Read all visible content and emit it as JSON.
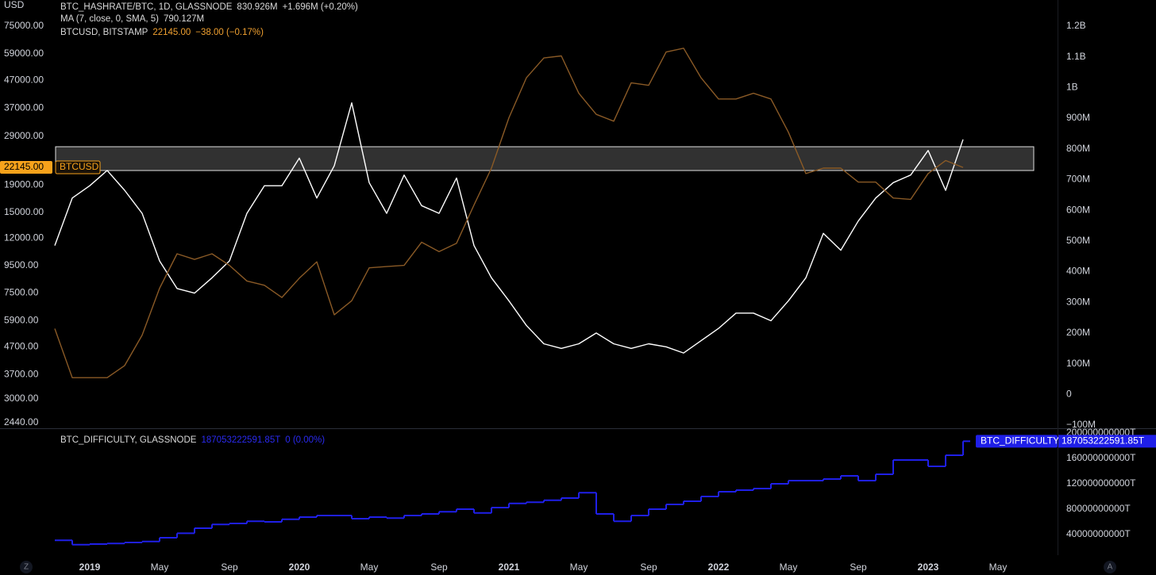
{
  "chart_data": [
    {
      "type": "line",
      "y_axis_label": "USD",
      "log_y": true,
      "ylim": [
        2440,
        75000
      ],
      "yticks": [
        {
          "value": 2440,
          "label": "2440.00"
        },
        {
          "value": 3000,
          "label": "3000.00"
        },
        {
          "value": 3700,
          "label": "3700.00"
        },
        {
          "value": 4700,
          "label": "4700.00"
        },
        {
          "value": 5900,
          "label": "5900.00"
        },
        {
          "value": 7500,
          "label": "7500.00"
        },
        {
          "value": 9500,
          "label": "9500.00"
        },
        {
          "value": 12000,
          "label": "12000.00"
        },
        {
          "value": 15000,
          "label": "15000.00"
        },
        {
          "value": 19000,
          "label": "19000.00"
        },
        {
          "value": 29000,
          "label": "29000.00"
        },
        {
          "value": 37000,
          "label": "37000.00"
        },
        {
          "value": 47000,
          "label": "47000.00"
        },
        {
          "value": 59000,
          "label": "59000.00"
        },
        {
          "value": 75000,
          "label": "75000.00"
        }
      ],
      "y2lim": [
        -100000000,
        1200000000
      ],
      "y2ticks": [
        {
          "value": -100000000,
          "label": "−100M"
        },
        0,
        {
          "value": 100000000,
          "label": "100M"
        },
        {
          "value": 200000000,
          "label": "200M"
        },
        {
          "value": 300000000,
          "label": "300M"
        },
        {
          "value": 400000000,
          "label": "400M"
        },
        {
          "value": 500000000,
          "label": "500M"
        },
        {
          "value": 600000000,
          "label": "600M"
        },
        {
          "value": 700000000,
          "label": "700M"
        },
        {
          "value": 800000000,
          "label": "800M"
        },
        {
          "value": 900000000,
          "label": "900M"
        },
        {
          "value": 1000000000,
          "label": "1B"
        },
        {
          "value": 1100000000,
          "label": "1.1B"
        },
        {
          "value": 1200000000,
          "label": "1.2B"
        }
      ],
      "price_tag": {
        "value": 22145,
        "label": "22145.00",
        "name": "BTCUSD"
      },
      "indicator": {
        "name": "MA (7, close, 0, SMA, 5)",
        "value_label": "790.127M"
      },
      "series": [
        {
          "name": "BTC_HASHRATE/BTC, 1D, GLASSNODE",
          "axis": "y2",
          "color": "#ffffff",
          "text_color": "#d9d9d9",
          "legend_values": [
            "830.926M",
            "+1.696M (+0.20%)"
          ],
          "values": [
            485000000,
            640000000,
            680000000,
            730000000,
            665000000,
            590000000,
            435000000,
            345000000,
            330000000,
            380000000,
            435000000,
            590000000,
            680000000,
            680000000,
            770000000,
            640000000,
            745000000,
            950000000,
            690000000,
            590000000,
            715000000,
            615000000,
            590000000,
            705000000,
            485000000,
            380000000,
            305000000,
            225000000,
            165000000,
            150000000,
            165000000,
            200000000,
            165000000,
            150000000,
            165000000,
            155000000,
            135000000,
            175000000,
            215000000,
            265000000,
            265000000,
            240000000,
            305000000,
            380000000,
            525000000,
            470000000,
            565000000,
            640000000,
            690000000,
            715000000,
            795000000,
            665000000,
            830926000,
            null,
            null
          ]
        },
        {
          "name": "BTCUSD, BITSTAMP",
          "axis": "y",
          "color": "#8a5a26",
          "text_color": "#f0a030",
          "legend_values": [
            "22145.00",
            "−38.00 (−0.17%)"
          ],
          "values": [
            5500,
            3600,
            3600,
            3600,
            4000,
            5200,
            7800,
            10500,
            10000,
            10500,
            9500,
            8300,
            8000,
            7200,
            8500,
            9800,
            6200,
            7000,
            9300,
            9400,
            9500,
            11600,
            10700,
            11500,
            16000,
            22000,
            34000,
            48000,
            57000,
            58000,
            42000,
            35000,
            33000,
            46000,
            45000,
            60000,
            62000,
            48000,
            40000,
            40000,
            42000,
            40000,
            30000,
            21000,
            22000,
            22000,
            19500,
            19500,
            17000,
            16800,
            21000,
            23500,
            22145,
            null,
            null
          ]
        }
      ]
    },
    {
      "type": "step",
      "categories": [
        null,
        null,
        "2019",
        null,
        null,
        null,
        "May",
        null,
        null,
        null,
        "Sep",
        null,
        null,
        null,
        "2020",
        null,
        null,
        null,
        "May",
        null,
        null,
        null,
        "Sep",
        null,
        null,
        null,
        "2021",
        null,
        null,
        null,
        "May",
        null,
        null,
        null,
        "Sep",
        null,
        null,
        null,
        "2022",
        null,
        null,
        null,
        "May",
        null,
        null,
        null,
        "Sep",
        null,
        null,
        null,
        "2023",
        null,
        null,
        null,
        "May"
      ],
      "ylim": [
        0,
        200000000000
      ],
      "yticks": [
        {
          "value": 40000000000,
          "label": "40000000000T"
        },
        {
          "value": 80000000000,
          "label": "80000000000T"
        },
        {
          "value": 120000000000,
          "label": "120000000000T"
        },
        {
          "value": 160000000000,
          "label": "160000000000T"
        },
        {
          "value": 200000000000,
          "label": "200000000000T"
        }
      ],
      "price_tag": {
        "value": 187053222591.85,
        "label": "187053222591.85T",
        "name": "BTC_DIFFICULTY"
      },
      "series": [
        {
          "name": "BTC_DIFFICULTY, GLASSNODE",
          "color": "#1f1fe8",
          "text_color": "#2a2af0",
          "legend_values": [
            "187053222591.85T",
            "0 (0.00%)"
          ],
          "values": [
            31000000000,
            24000000000,
            25000000000,
            26000000000,
            27500000000,
            29000000000,
            35000000000,
            42000000000,
            50000000000,
            56000000000,
            57500000000,
            61000000000,
            60000000000,
            64000000000,
            67500000000,
            70000000000,
            70000000000,
            65000000000,
            67500000000,
            66000000000,
            70000000000,
            72500000000,
            76000000000,
            80000000000,
            74000000000,
            82500000000,
            89000000000,
            91000000000,
            94000000000,
            97500000000,
            106000000000,
            72500000000,
            61000000000,
            70000000000,
            80000000000,
            87500000000,
            92500000000,
            100000000000,
            107500000000,
            110000000000,
            112500000000,
            120000000000,
            125000000000,
            125000000000,
            127500000000,
            132500000000,
            125000000000,
            135000000000,
            157500000000,
            157500000000,
            147500000000,
            165000000000,
            187053222591.85,
            null,
            null
          ]
        }
      ]
    }
  ]
}
